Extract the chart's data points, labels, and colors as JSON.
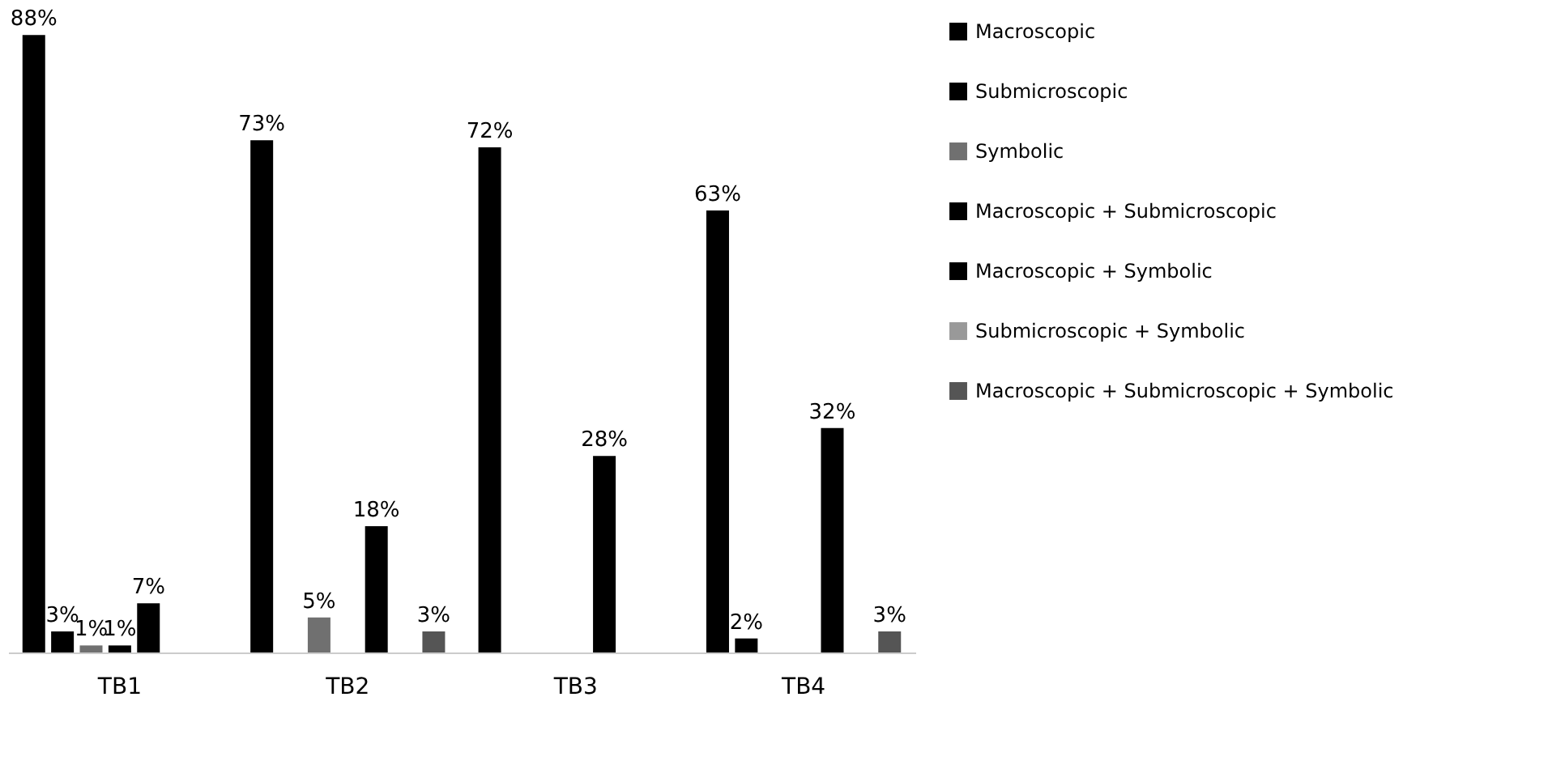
{
  "chart_data": {
    "type": "bar",
    "categories": [
      "TB1",
      "TB2",
      "TB3",
      "TB4"
    ],
    "legend": "right",
    "grid": false,
    "series": [
      {
        "name": "Macroscopic",
        "color": "#000000",
        "values": [
          88,
          73,
          72,
          63
        ],
        "value_labels": [
          "88%",
          "73%",
          "72%",
          "63%"
        ]
      },
      {
        "name": "Submicroscopic",
        "color": "#000000",
        "values": [
          3,
          0,
          0,
          2
        ],
        "value_labels": [
          "3%",
          null,
          null,
          "2%"
        ]
      },
      {
        "name": "Symbolic",
        "color": "#707070",
        "values": [
          1,
          5,
          0,
          0
        ],
        "value_labels": [
          "1%",
          "5%",
          null,
          null
        ]
      },
      {
        "name": "Macroscopic + Submicroscopic",
        "color": "#000000",
        "values": [
          1,
          0,
          0,
          0
        ],
        "value_labels": [
          "1%",
          null,
          null,
          null
        ]
      },
      {
        "name": "Macroscopic + Symbolic",
        "color": "#000000",
        "values": [
          7,
          18,
          28,
          32
        ],
        "value_labels": [
          "7%",
          "18%",
          "28%",
          "32%"
        ]
      },
      {
        "name": "Submicroscopic + Symbolic",
        "color": "#999999",
        "values": [
          0,
          0,
          0,
          0
        ],
        "value_labels": [
          null,
          null,
          null,
          null
        ]
      },
      {
        "name": "Macroscopic + Submicroscopic + Symbolic",
        "color": "#555555",
        "values": [
          0,
          3,
          0,
          3
        ],
        "value_labels": [
          null,
          "3%",
          null,
          "3%"
        ]
      }
    ]
  }
}
